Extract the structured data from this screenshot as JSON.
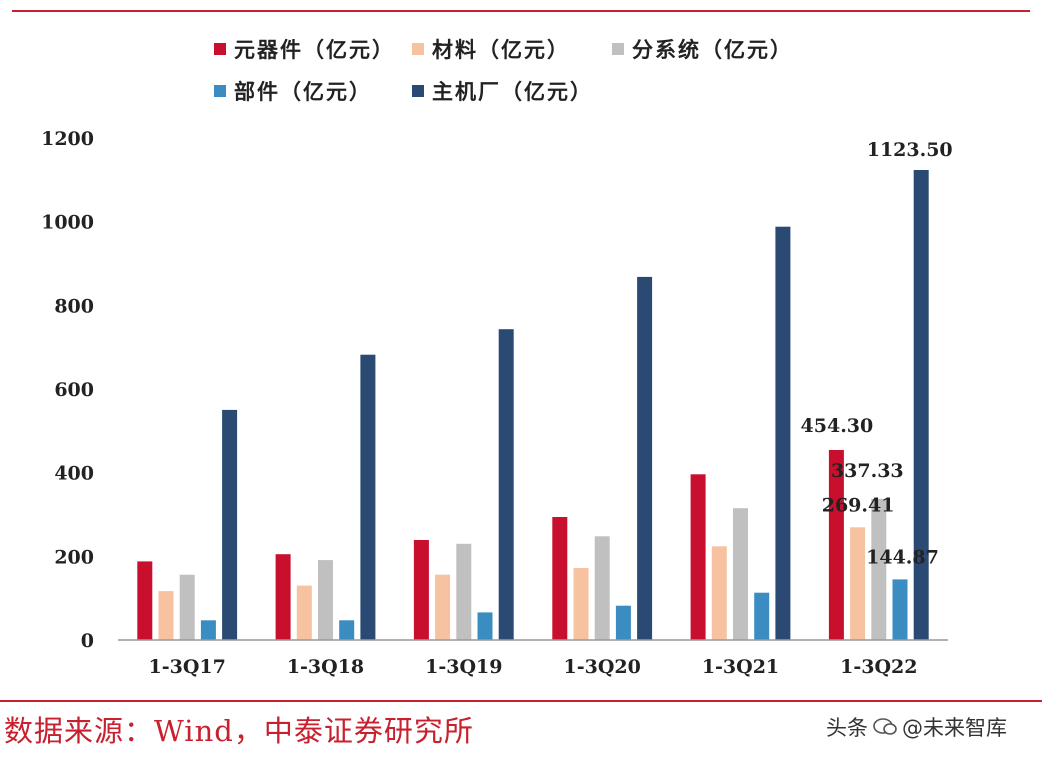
{
  "colors": {
    "rule": "#c8202e",
    "axis": "#999999",
    "text": "#222222",
    "source": "#c8202e"
  },
  "chart_data": {
    "type": "bar",
    "title": "",
    "xlabel": "",
    "ylabel": "",
    "ylim": [
      0,
      1200
    ],
    "yticks": [
      0,
      200,
      400,
      600,
      800,
      1000,
      1200
    ],
    "grid": false,
    "legend_position": "top",
    "categories": [
      "1-3Q17",
      "1-3Q18",
      "1-3Q19",
      "1-3Q20",
      "1-3Q21",
      "1-3Q22"
    ],
    "series": [
      {
        "name": "元器件（亿元）",
        "color": "#c8102e",
        "values": [
          188,
          205,
          239,
          294,
          396,
          454.3
        ]
      },
      {
        "name": "材料（亿元）",
        "color": "#f7c2a0",
        "values": [
          117,
          130,
          156,
          172,
          224,
          269.41
        ]
      },
      {
        "name": "分系统（亿元）",
        "color": "#c0c0c0",
        "values": [
          156,
          191,
          230,
          248,
          315,
          337.33
        ]
      },
      {
        "name": "部件（亿元）",
        "color": "#3b8dc1",
        "values": [
          47,
          47,
          66,
          82,
          113,
          144.87
        ]
      },
      {
        "name": "主机厂（亿元）",
        "color": "#2b4a73",
        "values": [
          550,
          682,
          743,
          868,
          988,
          1123.5
        ]
      }
    ],
    "data_labels": [
      {
        "category": "1-3Q22",
        "series": "元器件（亿元）",
        "text": "454.30"
      },
      {
        "category": "1-3Q22",
        "series": "材料（亿元）",
        "text": "269.41"
      },
      {
        "category": "1-3Q22",
        "series": "分系统（亿元）",
        "text": "337.33"
      },
      {
        "category": "1-3Q22",
        "series": "部件（亿元）",
        "text": "144.87"
      },
      {
        "category": "1-3Q22",
        "series": "主机厂（亿元）",
        "text": "1123.50"
      }
    ]
  },
  "source_text": "数据来源：Wind，中泰证券研究所",
  "watermark": {
    "prefix": "头条",
    "handle": "@未来智库"
  }
}
